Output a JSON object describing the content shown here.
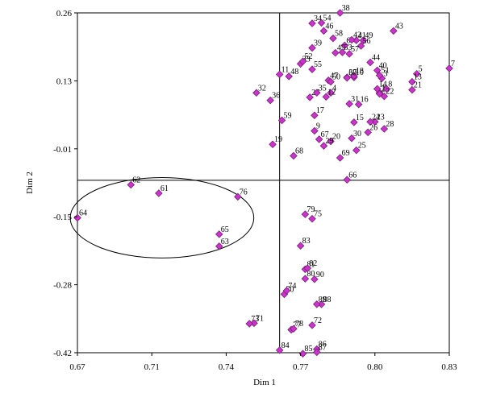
{
  "chart_data": {
    "type": "scatter",
    "title": "",
    "xlabel": "Dim 1",
    "ylabel": "Dim 2",
    "xlim": [
      0.67,
      0.83
    ],
    "ylim": [
      -0.42,
      0.26
    ],
    "xticks": [
      "0.67",
      "0.71",
      "0.74",
      "0.77",
      "0.80",
      "0.83"
    ],
    "yticks": [
      "0.26",
      "0.13",
      "-0.01",
      "-0.15",
      "-0.28",
      "-0.42"
    ],
    "reference_lines": {
      "x": 0.757,
      "y": -0.075
    },
    "grid": false,
    "legend": "none",
    "marker_color": "#cc33cc",
    "marker_stroke": "#7a1f7a",
    "ellipse": {
      "cx": 0.7064,
      "cy": -0.15,
      "rx": 0.0395,
      "ry": 0.0805
    },
    "points": [
      {
        "label": "1",
        "x": 0.8,
        "y": 0.1
      },
      {
        "label": "2",
        "x": 0.8,
        "y": 0.098
      },
      {
        "label": "3",
        "x": 0.801,
        "y": 0.129
      },
      {
        "label": "4",
        "x": 0.779,
        "y": 0.1
      },
      {
        "label": "5",
        "x": 0.816,
        "y": 0.138
      },
      {
        "label": "6",
        "x": 0.785,
        "y": 0.195
      },
      {
        "label": "7",
        "x": 0.83,
        "y": 0.149
      },
      {
        "label": "8",
        "x": 0.803,
        "y": 0.108
      },
      {
        "label": "9",
        "x": 0.772,
        "y": 0.024
      },
      {
        "label": "10",
        "x": 0.789,
        "y": 0.131
      },
      {
        "label": "11",
        "x": 0.757,
        "y": 0.137
      },
      {
        "label": "12",
        "x": 0.777,
        "y": 0.092
      },
      {
        "label": "13",
        "x": 0.814,
        "y": 0.122
      },
      {
        "label": "14",
        "x": 0.799,
        "y": 0.108
      },
      {
        "label": "15",
        "x": 0.789,
        "y": 0.041
      },
      {
        "label": "16",
        "x": 0.791,
        "y": 0.077
      },
      {
        "label": "17",
        "x": 0.772,
        "y": 0.055
      },
      {
        "label": "18",
        "x": 0.789,
        "y": 0.134
      },
      {
        "label": "19",
        "x": 0.754,
        "y": -0.003
      },
      {
        "label": "20",
        "x": 0.779,
        "y": 0.003
      },
      {
        "label": "21",
        "x": 0.814,
        "y": 0.106
      },
      {
        "label": "22",
        "x": 0.802,
        "y": 0.093
      },
      {
        "label": "23",
        "x": 0.798,
        "y": 0.042
      },
      {
        "label": "24",
        "x": 0.796,
        "y": 0.042
      },
      {
        "label": "25",
        "x": 0.79,
        "y": -0.015
      },
      {
        "label": "26",
        "x": 0.795,
        "y": 0.021
      },
      {
        "label": "27",
        "x": 0.77,
        "y": 0.091
      },
      {
        "label": "28",
        "x": 0.802,
        "y": 0.028
      },
      {
        "label": "29",
        "x": 0.776,
        "y": -0.006
      },
      {
        "label": "30",
        "x": 0.788,
        "y": 0.009
      },
      {
        "label": "31",
        "x": 0.787,
        "y": 0.078
      },
      {
        "label": "32",
        "x": 0.747,
        "y": 0.1
      },
      {
        "label": "33",
        "x": 0.766,
        "y": 0.158
      },
      {
        "label": "34",
        "x": 0.771,
        "y": 0.239
      },
      {
        "label": "35",
        "x": 0.773,
        "y": 0.1
      },
      {
        "label": "36",
        "x": 0.753,
        "y": 0.085
      },
      {
        "label": "37",
        "x": 0.786,
        "y": 0.131
      },
      {
        "label": "38",
        "x": 0.783,
        "y": 0.26
      },
      {
        "label": "39",
        "x": 0.771,
        "y": 0.19
      },
      {
        "label": "40",
        "x": 0.799,
        "y": 0.145
      },
      {
        "label": "41",
        "x": 0.79,
        "y": 0.205
      },
      {
        "label": "42",
        "x": 0.788,
        "y": 0.206
      },
      {
        "label": "43",
        "x": 0.806,
        "y": 0.224
      },
      {
        "label": "44",
        "x": 0.796,
        "y": 0.161
      },
      {
        "label": "45",
        "x": 0.781,
        "y": 0.18
      },
      {
        "label": "46",
        "x": 0.776,
        "y": 0.224
      },
      {
        "label": "47",
        "x": 0.778,
        "y": 0.125
      },
      {
        "label": "48",
        "x": 0.761,
        "y": 0.133
      },
      {
        "label": "49",
        "x": 0.793,
        "y": 0.205
      },
      {
        "label": "50",
        "x": 0.779,
        "y": 0.122
      },
      {
        "label": "51",
        "x": 0.8,
        "y": 0.135
      },
      {
        "label": "52",
        "x": 0.767,
        "y": 0.163
      },
      {
        "label": "53",
        "x": 0.784,
        "y": 0.181
      },
      {
        "label": "54",
        "x": 0.775,
        "y": 0.24
      },
      {
        "label": "55",
        "x": 0.771,
        "y": 0.147
      },
      {
        "label": "56",
        "x": 0.792,
        "y": 0.194
      },
      {
        "label": "57",
        "x": 0.787,
        "y": 0.178
      },
      {
        "label": "58",
        "x": 0.78,
        "y": 0.209
      },
      {
        "label": "59",
        "x": 0.758,
        "y": 0.045
      },
      {
        "label": "60",
        "x": 0.786,
        "y": 0.13
      },
      {
        "label": "61",
        "x": 0.705,
        "y": -0.101
      },
      {
        "label": "62",
        "x": 0.693,
        "y": -0.084
      },
      {
        "label": "63",
        "x": 0.731,
        "y": -0.207
      },
      {
        "label": "64",
        "x": 0.67,
        "y": -0.15
      },
      {
        "label": "65",
        "x": 0.731,
        "y": -0.183
      },
      {
        "label": "66",
        "x": 0.786,
        "y": -0.074
      },
      {
        "label": "67",
        "x": 0.774,
        "y": 0.007
      },
      {
        "label": "68",
        "x": 0.763,
        "y": -0.026
      },
      {
        "label": "69",
        "x": 0.783,
        "y": -0.03
      },
      {
        "label": "70",
        "x": 0.759,
        "y": -0.303
      },
      {
        "label": "71",
        "x": 0.746,
        "y": -0.361
      },
      {
        "label": "72",
        "x": 0.771,
        "y": -0.365
      },
      {
        "label": "73",
        "x": 0.744,
        "y": -0.362
      },
      {
        "label": "74",
        "x": 0.76,
        "y": -0.296
      },
      {
        "label": "75",
        "x": 0.771,
        "y": -0.152
      },
      {
        "label": "76",
        "x": 0.739,
        "y": -0.108
      },
      {
        "label": "77",
        "x": 0.762,
        "y": -0.374
      },
      {
        "label": "78",
        "x": 0.763,
        "y": -0.372
      },
      {
        "label": "79",
        "x": 0.768,
        "y": -0.143
      },
      {
        "label": "80",
        "x": 0.768,
        "y": -0.272
      },
      {
        "label": "81",
        "x": 0.768,
        "y": -0.253
      },
      {
        "label": "82",
        "x": 0.769,
        "y": -0.251
      },
      {
        "label": "83",
        "x": 0.766,
        "y": -0.206
      },
      {
        "label": "84",
        "x": 0.757,
        "y": -0.415
      },
      {
        "label": "85",
        "x": 0.767,
        "y": -0.422
      },
      {
        "label": "86",
        "x": 0.773,
        "y": -0.413
      },
      {
        "label": "87",
        "x": 0.773,
        "y": -0.419
      },
      {
        "label": "88",
        "x": 0.775,
        "y": -0.323
      },
      {
        "label": "89",
        "x": 0.773,
        "y": -0.323
      },
      {
        "label": "90",
        "x": 0.772,
        "y": -0.273
      }
    ]
  }
}
